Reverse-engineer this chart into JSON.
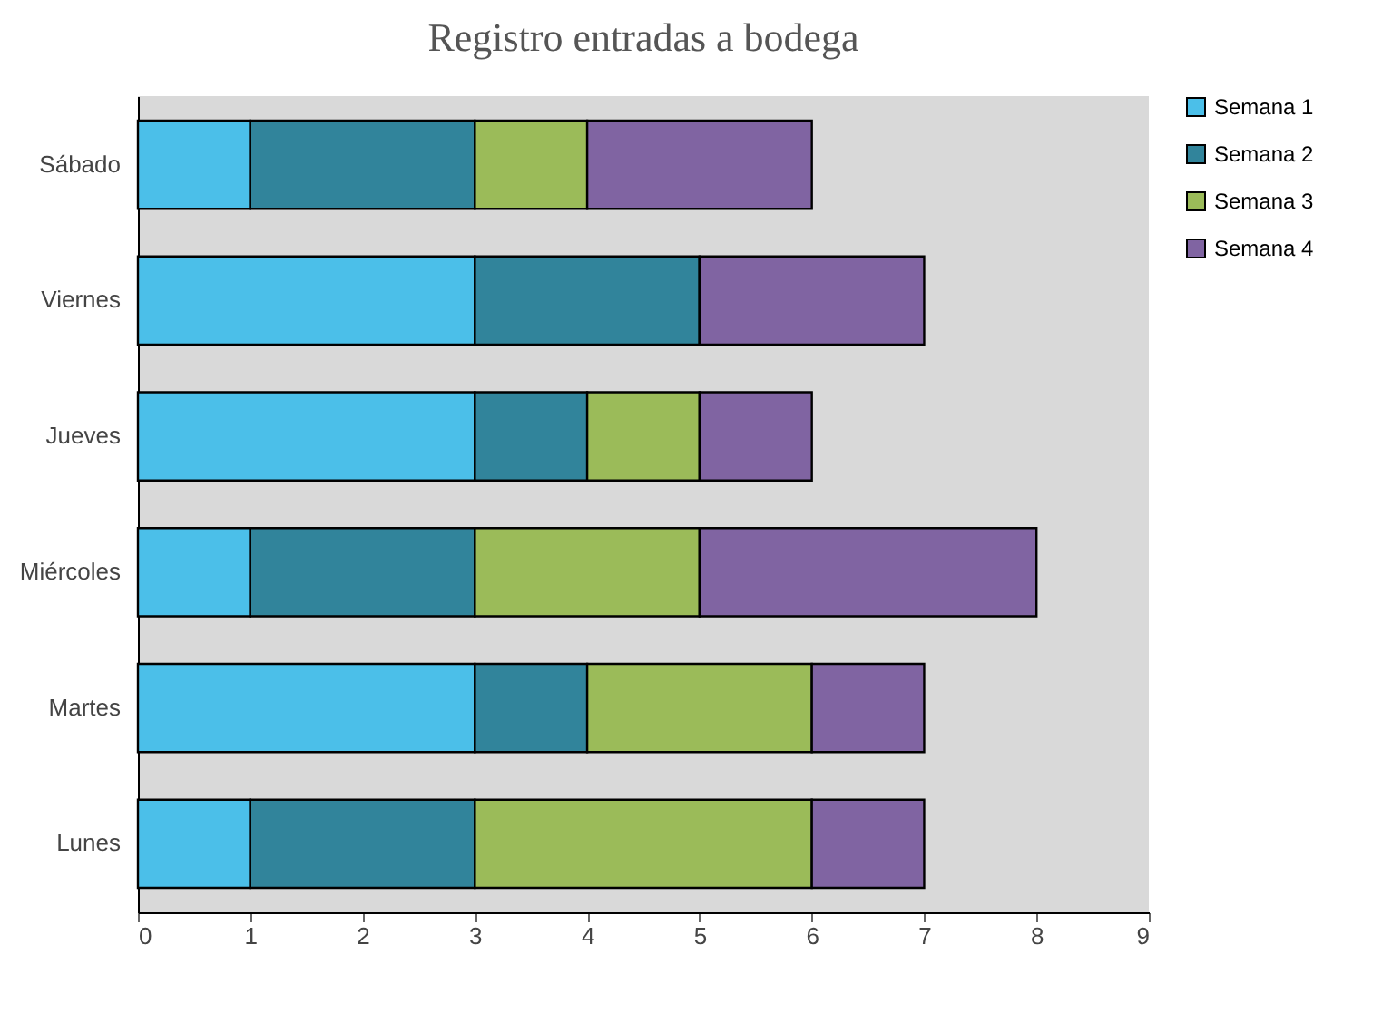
{
  "chart_data": {
    "type": "bar",
    "orientation": "horizontal",
    "stacked": true,
    "title": "Registro entradas a bodega",
    "categories": [
      "Sábado",
      "Viernes",
      "Jueves",
      "Miércoles",
      "Martes",
      "Lunes"
    ],
    "series": [
      {
        "name": "Semana 1",
        "color": "#4bbfe9",
        "values": [
          1,
          3,
          3,
          1,
          3,
          1
        ]
      },
      {
        "name": "Semana 2",
        "color": "#31849b",
        "values": [
          2,
          2,
          1,
          2,
          1,
          2
        ]
      },
      {
        "name": "Semana 3",
        "color": "#9bbb59",
        "values": [
          1,
          0,
          1,
          2,
          2,
          3
        ]
      },
      {
        "name": "Semana 4",
        "color": "#8064a2",
        "values": [
          2,
          2,
          1,
          3,
          1,
          1
        ]
      }
    ],
    "xlim": [
      0,
      9
    ],
    "xticks": [
      0,
      1,
      2,
      3,
      4,
      5,
      6,
      7,
      8,
      9
    ],
    "grid": false,
    "legend": "right"
  }
}
